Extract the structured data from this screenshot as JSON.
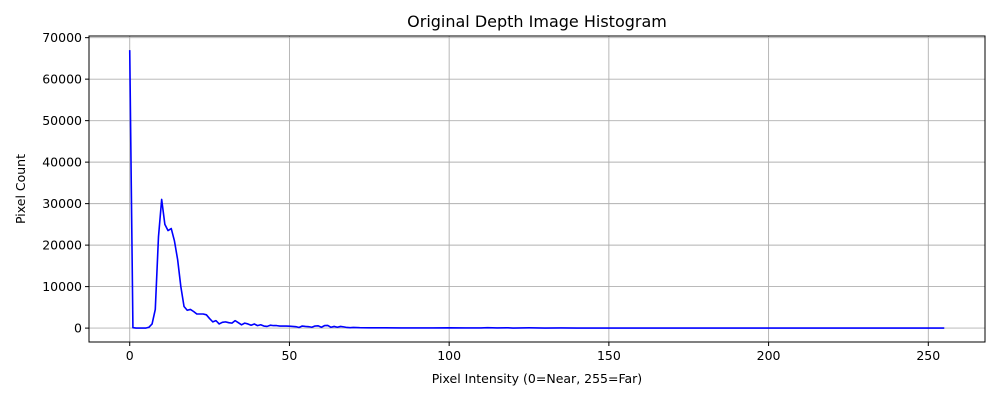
{
  "chart_data": {
    "type": "line",
    "title": "Original Depth Image Histogram",
    "xlabel": "Pixel Intensity (0=Near, 255=Far)",
    "ylabel": "Pixel Count",
    "xlim": [
      -12.75,
      267.75
    ],
    "ylim": [
      -3350,
      70400
    ],
    "xticks": [
      0,
      50,
      100,
      150,
      200,
      250
    ],
    "yticks": [
      0,
      10000,
      20000,
      30000,
      40000,
      50000,
      60000,
      70000
    ],
    "grid": true,
    "series": [
      {
        "color": "#0000ff",
        "x": [
          0,
          1,
          2,
          3,
          4,
          5,
          6,
          7,
          8,
          9,
          10,
          11,
          12,
          13,
          14,
          15,
          16,
          17,
          18,
          19,
          20,
          21,
          22,
          23,
          24,
          25,
          26,
          27,
          28,
          29,
          30,
          31,
          32,
          33,
          34,
          35,
          36,
          37,
          38,
          39,
          40,
          41,
          42,
          43,
          44,
          45,
          46,
          47,
          48,
          49,
          50,
          51,
          52,
          53,
          54,
          55,
          56,
          57,
          58,
          59,
          60,
          61,
          62,
          63,
          64,
          65,
          66,
          67,
          68,
          69,
          70,
          72,
          75,
          80,
          85,
          90,
          95,
          100,
          105,
          110,
          112,
          115,
          118,
          120,
          125,
          130,
          135,
          140,
          150,
          160,
          170,
          180,
          190,
          200,
          210,
          220,
          230,
          240,
          250,
          255
        ],
        "y": [
          67000,
          100,
          0,
          0,
          0,
          0,
          200,
          1000,
          4500,
          22000,
          31000,
          25000,
          23500,
          24000,
          21000,
          16500,
          10000,
          5200,
          4300,
          4500,
          4000,
          3400,
          3400,
          3400,
          3200,
          2300,
          1500,
          1800,
          1000,
          1400,
          1500,
          1300,
          1200,
          1800,
          1300,
          800,
          1200,
          1000,
          700,
          1000,
          600,
          800,
          500,
          400,
          700,
          600,
          600,
          500,
          500,
          500,
          450,
          400,
          350,
          150,
          500,
          400,
          350,
          200,
          500,
          550,
          200,
          600,
          650,
          200,
          400,
          200,
          400,
          300,
          150,
          100,
          150,
          100,
          80,
          60,
          50,
          40,
          40,
          80,
          30,
          30,
          100,
          30,
          80,
          20,
          60,
          20,
          30,
          20,
          20,
          15,
          15,
          10,
          10,
          10,
          10,
          10,
          10,
          10,
          10,
          0
        ]
      }
    ]
  }
}
